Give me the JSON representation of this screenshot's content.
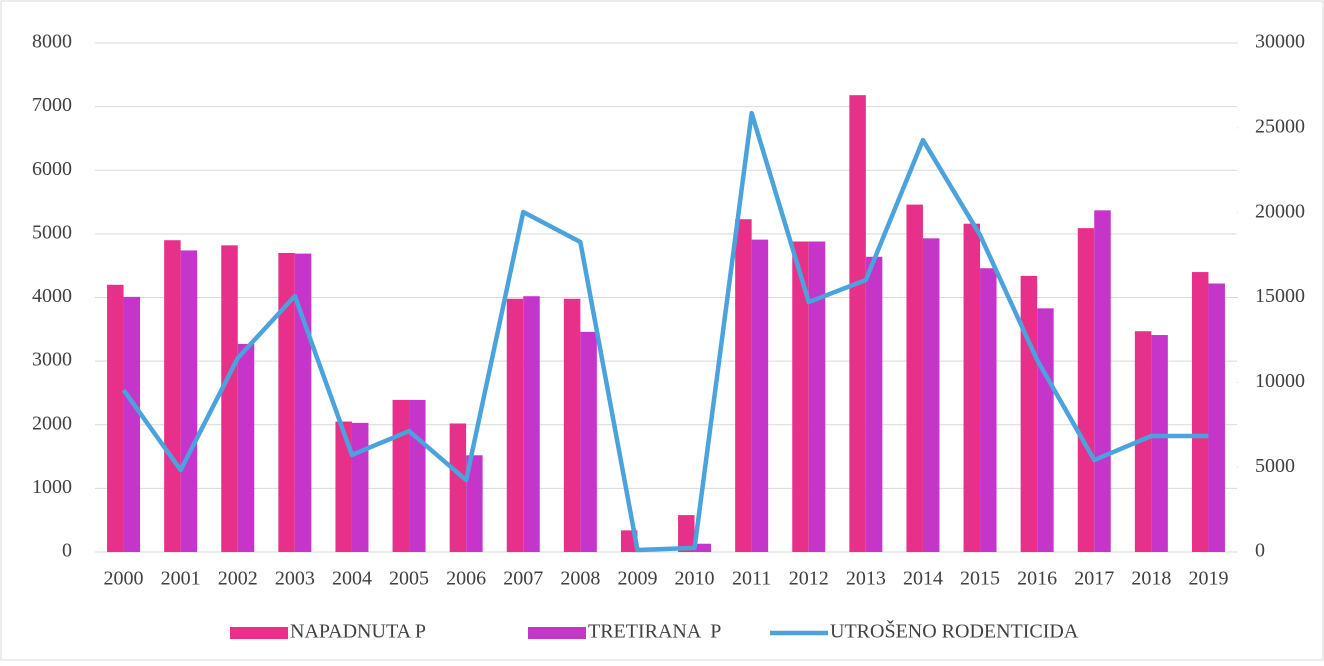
{
  "chart_data": {
    "type": "bar_line",
    "categories": [
      "2000",
      "2001",
      "2002",
      "2003",
      "2004",
      "2005",
      "2006",
      "2007",
      "2008",
      "2009",
      "2010",
      "2011",
      "2012",
      "2013",
      "2014",
      "2015",
      "2016",
      "2017",
      "2018",
      "2019"
    ],
    "series": [
      {
        "name": "NAPADNUTA P",
        "color": "#e6308a",
        "type": "bar",
        "values": [
          4200,
          4900,
          4820,
          4700,
          2050,
          2390,
          2020,
          3980,
          3980,
          340,
          580,
          5230,
          4880,
          7180,
          5460,
          5160,
          4340,
          5090,
          3470,
          4400
        ]
      },
      {
        "name": "TRETIRANA  P",
        "color": "#c535c9",
        "type": "bar",
        "values": [
          4010,
          4740,
          3270,
          4690,
          2030,
          2390,
          1520,
          4020,
          3460,
          0,
          130,
          4910,
          4880,
          4640,
          4930,
          4460,
          3830,
          5370,
          3410,
          4220
        ]
      },
      {
        "name": "UTROŠENO RODENTICIDA",
        "color": "#4aa3dc",
        "type": "line",
        "axis": "y2",
        "values": [
          9550,
          4830,
          11430,
          15090,
          5720,
          7130,
          4240,
          20040,
          18270,
          120,
          240,
          25870,
          14730,
          16030,
          24280,
          18680,
          11320,
          5420,
          6840,
          6840
        ]
      }
    ],
    "ylim": [
      0,
      8000
    ],
    "yticks": [
      0,
      1000,
      2000,
      3000,
      4000,
      5000,
      6000,
      7000,
      8000
    ],
    "y2lim": [
      0,
      30000
    ],
    "y2ticks": [
      0,
      5000,
      10000,
      15000,
      20000,
      25000,
      30000
    ],
    "grid": true,
    "legend": "bottom"
  }
}
